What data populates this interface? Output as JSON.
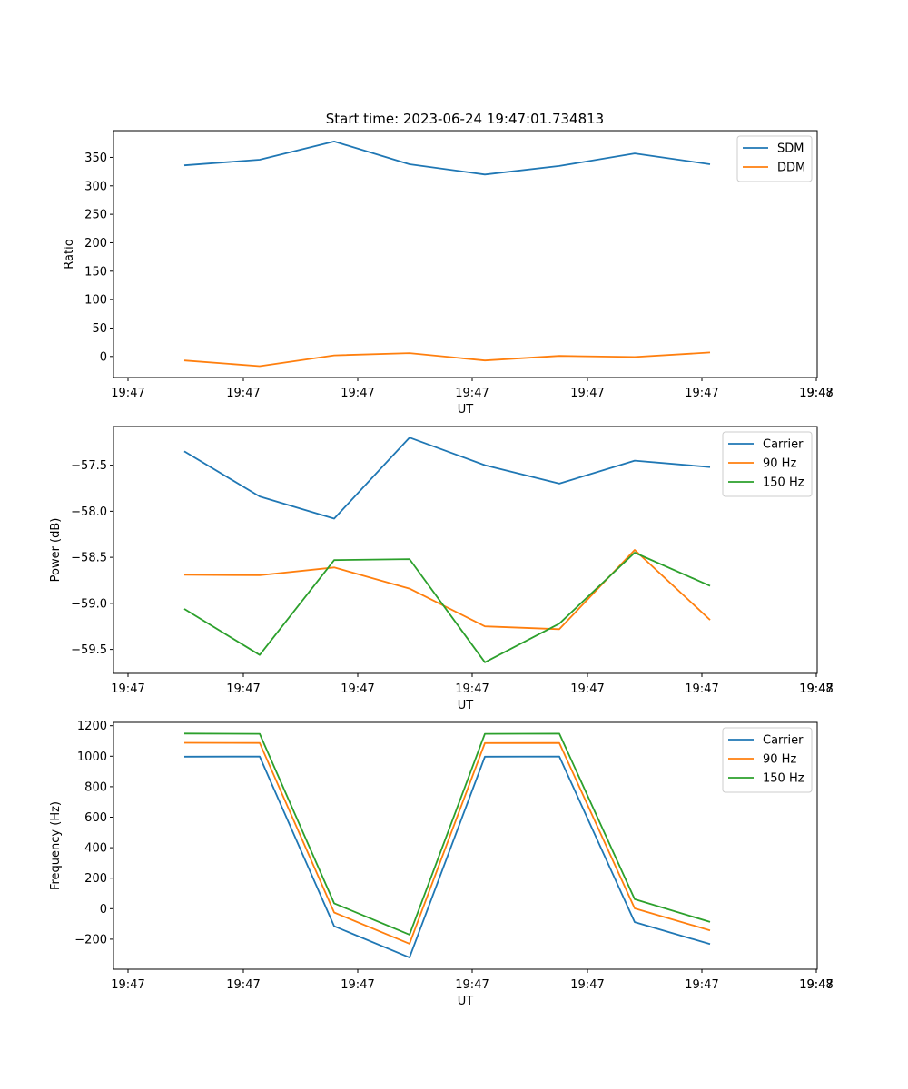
{
  "title": "Start time: 2023-06-24 19:47:01.734813",
  "colors": {
    "blue": "#1f77b4",
    "orange": "#ff7f0e",
    "green": "#2ca02c"
  },
  "chart_data": [
    {
      "type": "line",
      "xlabel": "UT",
      "ylabel": "Ratio",
      "x_tick_labels": [
        "19:47",
        "19:47",
        "19:47",
        "19:47",
        "19:47",
        "19:47",
        "19:47",
        "19:48"
      ],
      "y_ticks": [
        0,
        50,
        100,
        150,
        200,
        250,
        300,
        350
      ],
      "y_tick_labels": [
        "0",
        "50",
        "100",
        "150",
        "200",
        "250",
        "300",
        "350"
      ],
      "ylim": [
        -37,
        397
      ],
      "legend_placement": "top-right",
      "series": [
        {
          "name": "SDM",
          "color": "#1f77b4",
          "values": [
            336,
            346,
            378,
            338,
            320,
            335,
            357,
            338
          ]
        },
        {
          "name": "DDM",
          "color": "#ff7f0e",
          "values": [
            -7,
            -17,
            2,
            6,
            -7,
            1,
            -1,
            7
          ]
        }
      ]
    },
    {
      "type": "line",
      "xlabel": "UT",
      "ylabel": "Power (dB)",
      "x_tick_labels": [
        "19:47",
        "19:47",
        "19:47",
        "19:47",
        "19:47",
        "19:47",
        "19:47",
        "19:48"
      ],
      "y_ticks": [
        -59.5,
        -59.0,
        -58.5,
        -58.0,
        -57.5
      ],
      "y_tick_labels": [
        "−59.5",
        "−59.0",
        "−58.5",
        "−58.0",
        "−57.5"
      ],
      "ylim": [
        -59.76,
        -57.08
      ],
      "legend_placement": "top-right",
      "series": [
        {
          "name": "Carrier",
          "color": "#1f77b4",
          "values": [
            -57.35,
            -57.84,
            -58.08,
            -57.2,
            -57.5,
            -57.7,
            -57.45,
            -57.52
          ]
        },
        {
          "name": "90 Hz",
          "color": "#ff7f0e",
          "values": [
            -58.69,
            -58.695,
            -58.61,
            -58.84,
            -59.25,
            -59.28,
            -58.42,
            -59.18
          ]
        },
        {
          "name": "150 Hz",
          "color": "#2ca02c",
          "values": [
            -59.06,
            -59.56,
            -58.53,
            -58.52,
            -59.64,
            -59.22,
            -58.45,
            -58.81
          ]
        }
      ]
    },
    {
      "type": "line",
      "xlabel": "UT",
      "ylabel": "Frequency (Hz)",
      "x_tick_labels": [
        "19:47",
        "19:47",
        "19:47",
        "19:47",
        "19:47",
        "19:47",
        "19:47",
        "19:48"
      ],
      "y_ticks": [
        -200,
        0,
        200,
        400,
        600,
        800,
        1000,
        1200
      ],
      "y_tick_labels": [
        "−200",
        "0",
        "200",
        "400",
        "600",
        "800",
        "1000",
        "1200"
      ],
      "ylim": [
        -397,
        1222
      ],
      "legend_placement": "top-right",
      "series": [
        {
          "name": "Carrier",
          "color": "#1f77b4",
          "values": [
            997,
            998,
            -115,
            -320,
            997,
            998,
            -88,
            -232
          ]
        },
        {
          "name": "90 Hz",
          "color": "#ff7f0e",
          "values": [
            1088,
            1087,
            -25,
            -230,
            1086,
            1087,
            2,
            -142
          ]
        },
        {
          "name": "150 Hz",
          "color": "#2ca02c",
          "values": [
            1149,
            1147,
            35,
            -170,
            1147,
            1148,
            62,
            -87
          ]
        }
      ]
    }
  ]
}
